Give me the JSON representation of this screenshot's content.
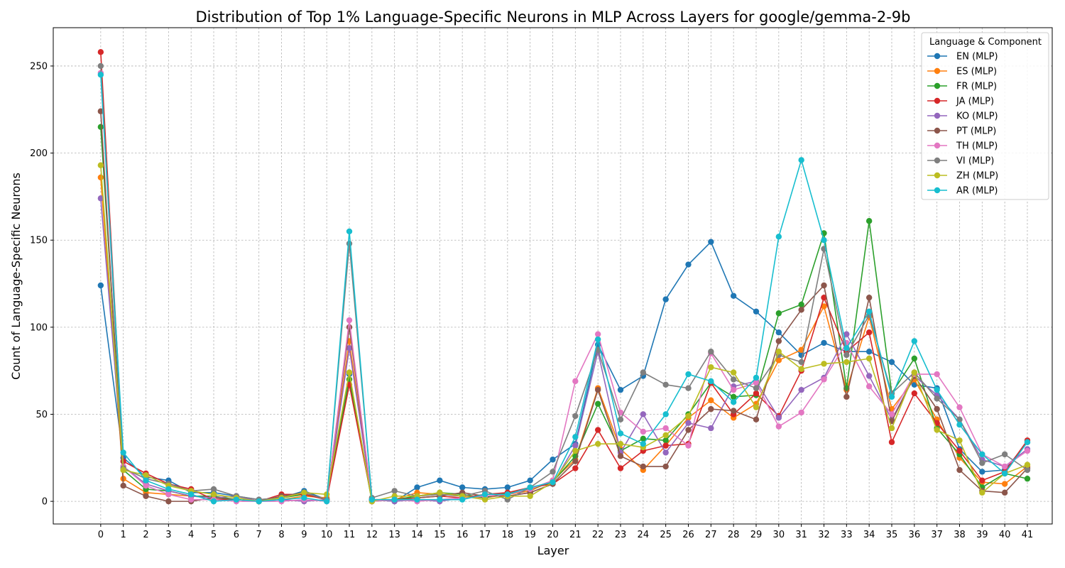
{
  "chart_data": {
    "type": "line",
    "title": "Distribution of Top 1% Language-Specific Neurons in MLP Across Layers for google/gemma-2-9b",
    "xlabel": "Layer",
    "ylabel": "Count of Language-Specific Neurons",
    "xlim": [
      -2.1,
      42.1
    ],
    "ylim": [
      -13,
      272
    ],
    "x_ticks": [
      0,
      1,
      2,
      3,
      4,
      5,
      6,
      7,
      8,
      9,
      10,
      11,
      12,
      13,
      14,
      15,
      16,
      17,
      18,
      19,
      20,
      21,
      22,
      23,
      24,
      25,
      26,
      27,
      28,
      29,
      30,
      31,
      32,
      33,
      34,
      35,
      36,
      37,
      38,
      39,
      40,
      41
    ],
    "y_ticks": [
      0,
      50,
      100,
      150,
      200,
      250
    ],
    "grid": true,
    "legend": {
      "title": "Language & Component",
      "placement": "top-right"
    },
    "x": [
      0,
      1,
      2,
      3,
      4,
      5,
      6,
      7,
      8,
      9,
      10,
      11,
      12,
      13,
      14,
      15,
      16,
      17,
      18,
      19,
      20,
      21,
      22,
      23,
      24,
      25,
      26,
      27,
      28,
      29,
      30,
      31,
      32,
      33,
      34,
      35,
      36,
      37,
      38,
      39,
      40,
      41
    ],
    "series": [
      {
        "name": "EN (MLP)",
        "color": "#1f77b4",
        "values": [
          124,
          25,
          14,
          12,
          5,
          5,
          3,
          1,
          2,
          6,
          1,
          73,
          1,
          0,
          8,
          12,
          8,
          7,
          8,
          12,
          24,
          33,
          90,
          64,
          72,
          116,
          136,
          149,
          118,
          109,
          97,
          84,
          91,
          86,
          86,
          80,
          67,
          65,
          30,
          17,
          18,
          34
        ]
      },
      {
        "name": "ES (MLP)",
        "color": "#ff7f0e",
        "values": [
          186,
          13,
          5,
          4,
          3,
          2,
          1,
          0,
          1,
          3,
          2,
          92,
          0,
          1,
          5,
          4,
          3,
          2,
          4,
          6,
          12,
          24,
          65,
          30,
          18,
          32,
          48,
          58,
          48,
          56,
          81,
          87,
          112,
          64,
          106,
          53,
          70,
          47,
          25,
          11,
          10,
          20
        ]
      },
      {
        "name": "FR (MLP)",
        "color": "#2ca02c",
        "values": [
          215,
          18,
          7,
          6,
          3,
          3,
          1,
          0,
          2,
          4,
          1,
          70,
          0,
          1,
          3,
          5,
          4,
          2,
          5,
          7,
          11,
          26,
          56,
          29,
          36,
          35,
          50,
          68,
          60,
          61,
          108,
          113,
          154,
          65,
          161,
          62,
          82,
          42,
          27,
          8,
          16,
          13
        ]
      },
      {
        "name": "JA (MLP)",
        "color": "#d62728",
        "values": [
          258,
          23,
          16,
          10,
          7,
          1,
          1,
          0,
          4,
          4,
          1,
          67,
          1,
          1,
          2,
          3,
          2,
          4,
          5,
          8,
          10,
          19,
          41,
          19,
          29,
          32,
          33,
          68,
          50,
          62,
          49,
          75,
          117,
          86,
          97,
          34,
          62,
          45,
          29,
          12,
          17,
          35
        ]
      },
      {
        "name": "KO (MLP)",
        "color": "#9467bd",
        "values": [
          174,
          20,
          10,
          6,
          3,
          2,
          3,
          0,
          1,
          0,
          1,
          88,
          1,
          0,
          1,
          0,
          2,
          3,
          3,
          5,
          10,
          32,
          86,
          28,
          50,
          28,
          45,
          42,
          66,
          69,
          48,
          64,
          71,
          96,
          72,
          47,
          72,
          61,
          47,
          24,
          20,
          30
        ]
      },
      {
        "name": "PT (MLP)",
        "color": "#8c564b",
        "values": [
          224,
          9,
          3,
          0,
          0,
          2,
          1,
          0,
          3,
          5,
          1,
          100,
          0,
          1,
          2,
          3,
          5,
          3,
          3,
          5,
          10,
          23,
          64,
          26,
          20,
          20,
          41,
          53,
          52,
          47,
          92,
          110,
          124,
          60,
          117,
          46,
          72,
          53,
          18,
          6,
          5,
          19
        ]
      },
      {
        "name": "TH (MLP)",
        "color": "#e377c2",
        "values": [
          246,
          20,
          9,
          4,
          1,
          1,
          0,
          0,
          0,
          1,
          0,
          104,
          0,
          1,
          0,
          1,
          2,
          3,
          4,
          7,
          12,
          69,
          96,
          51,
          40,
          42,
          32,
          85,
          64,
          68,
          43,
          51,
          70,
          91,
          66,
          50,
          73,
          73,
          54,
          27,
          20,
          29
        ]
      },
      {
        "name": "VI (MLP)",
        "color": "#7f7f7f",
        "values": [
          250,
          19,
          13,
          10,
          6,
          7,
          3,
          1,
          2,
          5,
          1,
          148,
          2,
          6,
          3,
          4,
          3,
          6,
          1,
          8,
          17,
          49,
          87,
          47,
          74,
          67,
          65,
          86,
          70,
          65,
          84,
          80,
          145,
          84,
          107,
          62,
          74,
          59,
          47,
          22,
          27,
          18
        ]
      },
      {
        "name": "ZH (MLP)",
        "color": "#bcbd22",
        "values": [
          193,
          18,
          15,
          9,
          6,
          4,
          2,
          0,
          2,
          5,
          4,
          74,
          0,
          3,
          3,
          5,
          3,
          1,
          3,
          3,
          11,
          29,
          33,
          33,
          31,
          38,
          49,
          77,
          74,
          54,
          86,
          76,
          79,
          80,
          82,
          42,
          74,
          41,
          35,
          5,
          16,
          21
        ]
      },
      {
        "name": "AR (MLP)",
        "color": "#17becf",
        "values": [
          245,
          28,
          12,
          7,
          4,
          0,
          1,
          0,
          1,
          2,
          0,
          155,
          1,
          1,
          1,
          1,
          1,
          4,
          4,
          8,
          11,
          37,
          93,
          39,
          33,
          50,
          73,
          69,
          57,
          71,
          152,
          196,
          150,
          88,
          109,
          60,
          92,
          64,
          44,
          27,
          16,
          34
        ]
      }
    ]
  }
}
